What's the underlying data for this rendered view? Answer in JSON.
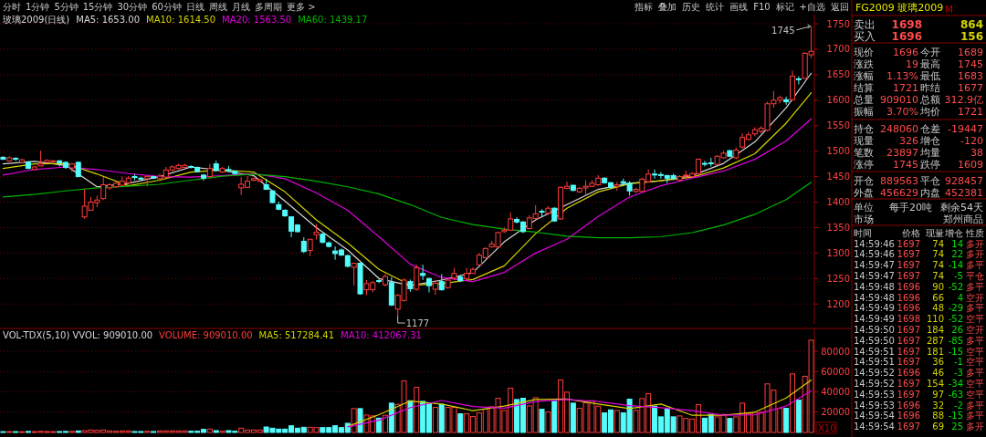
{
  "chart_data": [
    {
      "type": "candlestick",
      "title": "玻璃2009(日线)",
      "legend": "top left",
      "grid": "y",
      "ylim": [
        1161,
        1768
      ],
      "yticks": [
        1200,
        1250,
        1300,
        1350,
        1400,
        1450,
        1500,
        1550,
        1600,
        1650,
        1700,
        1750
      ],
      "categories": [
        null,
        null,
        null,
        null,
        null,
        null,
        null,
        null,
        null,
        null,
        null,
        null,
        null,
        null,
        null,
        null,
        null,
        null,
        null,
        null,
        null,
        null,
        null,
        null,
        null,
        null,
        null,
        null,
        null,
        null,
        null,
        null,
        null,
        null,
        null,
        null,
        null,
        null,
        null,
        null,
        null,
        null,
        null,
        null,
        null,
        null,
        null,
        null,
        null,
        null,
        null,
        null,
        null,
        null,
        null,
        null,
        null,
        null,
        null,
        null,
        null,
        null,
        null,
        null,
        null,
        null,
        null,
        null,
        null,
        null,
        null,
        null,
        null,
        null,
        null,
        null,
        null,
        null,
        null,
        null,
        null,
        null,
        null,
        null,
        null,
        null,
        null,
        null,
        null,
        null,
        null,
        null,
        null,
        null,
        null,
        null,
        null,
        null,
        null,
        null,
        null,
        null,
        null,
        null,
        null,
        null,
        null,
        null,
        null,
        null,
        null,
        null,
        null,
        null,
        null,
        null,
        null,
        null,
        null,
        null,
        null,
        null,
        null,
        null,
        null,
        null,
        null,
        null,
        null,
        null
      ],
      "ohlc": [
        [
          1488,
          1490,
          1483,
          1484
        ],
        [
          1481,
          1490,
          1479,
          1487
        ],
        [
          1486,
          1488,
          1481,
          1484
        ],
        [
          1478,
          1485,
          1477,
          1483
        ],
        [
          1479,
          1480,
          1465,
          1466
        ],
        [
          1464,
          1470,
          1463,
          1469
        ],
        [
          1471,
          1501,
          1470,
          1475
        ],
        [
          1478,
          1484,
          1477,
          1482
        ],
        [
          1480,
          1482,
          1478,
          1481
        ],
        [
          1481,
          1482,
          1470,
          1477
        ],
        [
          1478,
          1480,
          1465,
          1468
        ],
        [
          1467,
          1477,
          1459,
          1475
        ],
        [
          1478,
          1480,
          1449,
          1450
        ],
        [
          1371,
          1425,
          1367,
          1392
        ],
        [
          1384,
          1410,
          1383,
          1400
        ],
        [
          1399,
          1413,
          1390,
          1404
        ],
        [
          1407,
          1449,
          1404,
          1434
        ],
        [
          1428,
          1437,
          1424,
          1434
        ],
        [
          1430,
          1440,
          1428,
          1437
        ],
        [
          1433,
          1450,
          1431,
          1441
        ],
        [
          1438,
          1451,
          1436,
          1447
        ],
        [
          1450,
          1455,
          1443,
          1449
        ],
        [
          1447,
          1450,
          1444,
          1446
        ],
        [
          1446,
          1452,
          1431,
          1450
        ],
        [
          1450,
          1452,
          1445,
          1447
        ],
        [
          1446,
          1456,
          1444,
          1451
        ],
        [
          1449,
          1469,
          1447,
          1463
        ],
        [
          1463,
          1472,
          1460,
          1469
        ],
        [
          1466,
          1475,
          1464,
          1472
        ],
        [
          1468,
          1475,
          1466,
          1472
        ],
        [
          1470,
          1472,
          1466,
          1469
        ],
        [
          1468,
          1470,
          1458,
          1460
        ],
        [
          1453,
          1455,
          1442,
          1447
        ],
        [
          1450,
          1475,
          1446,
          1466
        ],
        [
          1475,
          1481,
          1460,
          1462
        ],
        [
          1459,
          1469,
          1457,
          1466
        ],
        [
          1464,
          1471,
          1459,
          1463
        ],
        [
          1461,
          1462,
          1454,
          1456
        ],
        [
          1428,
          1449,
          1414,
          1435
        ],
        [
          1429,
          1451,
          1428,
          1441
        ],
        [
          1443,
          1448,
          1441,
          1446
        ],
        [
          1441,
          1446,
          1440,
          1444
        ],
        [
          1434,
          1446,
          1424,
          1425
        ],
        [
          1422,
          1423,
          1398,
          1399
        ],
        [
          1395,
          1401,
          1384,
          1386
        ],
        [
          1384,
          1386,
          1371,
          1373
        ],
        [
          1371,
          1372,
          1331,
          1343
        ],
        [
          1355,
          1357,
          1340,
          1342
        ],
        [
          1323,
          1331,
          1300,
          1303
        ],
        [
          1305,
          1328,
          1294,
          1327
        ],
        [
          1336,
          1357,
          1327,
          1341
        ],
        [
          1337,
          1339,
          1319,
          1321
        ],
        [
          1320,
          1323,
          1311,
          1313
        ],
        [
          1304,
          1313,
          1287,
          1299
        ],
        [
          1306,
          1309,
          1294,
          1296
        ],
        [
          1295,
          1297,
          1272,
          1274
        ],
        [
          1272,
          1281,
          1236,
          1280
        ],
        [
          1280,
          1281,
          1218,
          1220
        ],
        [
          1228,
          1247,
          1217,
          1240
        ],
        [
          1228,
          1245,
          1223,
          1242
        ],
        [
          1246,
          1250,
          1241,
          1245
        ],
        [
          1238,
          1259,
          1234,
          1254
        ],
        [
          1242,
          1253,
          1196,
          1198
        ],
        [
          1190,
          1220,
          1177,
          1217
        ],
        [
          1207,
          1250,
          1205,
          1247
        ],
        [
          1244,
          1248,
          1224,
          1230
        ],
        [
          1229,
          1277,
          1226,
          1271
        ],
        [
          1260,
          1277,
          1247,
          1256
        ],
        [
          1250,
          1252,
          1223,
          1236
        ],
        [
          1229,
          1247,
          1218,
          1241
        ],
        [
          1244,
          1259,
          1226,
          1228
        ],
        [
          1232,
          1250,
          1230,
          1247
        ],
        [
          1251,
          1271,
          1247,
          1260
        ],
        [
          1253,
          1256,
          1243,
          1246
        ],
        [
          1250,
          1271,
          1247,
          1260
        ],
        [
          1260,
          1272,
          1259,
          1268
        ],
        [
          1277,
          1300,
          1275,
          1296
        ],
        [
          1291,
          1311,
          1289,
          1309
        ],
        [
          1312,
          1324,
          1311,
          1318
        ],
        [
          1312,
          1342,
          1310,
          1340
        ],
        [
          1342,
          1350,
          1340,
          1345
        ],
        [
          1345,
          1380,
          1343,
          1367
        ],
        [
          1366,
          1370,
          1358,
          1361
        ],
        [
          1361,
          1363,
          1339,
          1342
        ],
        [
          1348,
          1374,
          1346,
          1369
        ],
        [
          1368,
          1394,
          1366,
          1377
        ],
        [
          1382,
          1386,
          1372,
          1381
        ],
        [
          1378,
          1392,
          1375,
          1388
        ],
        [
          1388,
          1390,
          1361,
          1363
        ],
        [
          1367,
          1431,
          1365,
          1429
        ],
        [
          1427,
          1440,
          1425,
          1431
        ],
        [
          1433,
          1434,
          1421,
          1423
        ],
        [
          1420,
          1430,
          1418,
          1427
        ],
        [
          1428,
          1443,
          1413,
          1431
        ],
        [
          1431,
          1443,
          1429,
          1437
        ],
        [
          1434,
          1453,
          1432,
          1447
        ],
        [
          1447,
          1449,
          1436,
          1438
        ],
        [
          1438,
          1440,
          1426,
          1429
        ],
        [
          1431,
          1440,
          1422,
          1434
        ],
        [
          1440,
          1446,
          1431,
          1437
        ],
        [
          1437,
          1441,
          1413,
          1422
        ],
        [
          1421,
          1428,
          1418,
          1425
        ],
        [
          1421,
          1448,
          1419,
          1445
        ],
        [
          1440,
          1464,
          1438,
          1455
        ],
        [
          1455,
          1464,
          1446,
          1454
        ],
        [
          1454,
          1459,
          1446,
          1453
        ],
        [
          1452,
          1454,
          1437,
          1447
        ],
        [
          1452,
          1456,
          1443,
          1446
        ],
        [
          1443,
          1453,
          1441,
          1450
        ],
        [
          1452,
          1462,
          1446,
          1453
        ],
        [
          1450,
          1459,
          1448,
          1456
        ],
        [
          1456,
          1486,
          1454,
          1484
        ],
        [
          1476,
          1481,
          1470,
          1475
        ],
        [
          1477,
          1487,
          1470,
          1476
        ],
        [
          1474,
          1492,
          1472,
          1490
        ],
        [
          1487,
          1500,
          1485,
          1496
        ],
        [
          1501,
          1502,
          1488,
          1490
        ],
        [
          1487,
          1507,
          1484,
          1502
        ],
        [
          1508,
          1535,
          1505,
          1527
        ],
        [
          1523,
          1538,
          1521,
          1532
        ],
        [
          1534,
          1547,
          1529,
          1542
        ],
        [
          1539,
          1549,
          1535,
          1545
        ],
        [
          1541,
          1597,
          1539,
          1593
        ],
        [
          1593,
          1618,
          1585,
          1600
        ],
        [
          1600,
          1609,
          1594,
          1605
        ],
        [
          1601,
          1607,
          1591,
          1597
        ],
        [
          1601,
          1658,
          1599,
          1647
        ],
        [
          1642,
          1647,
          1631,
          1641
        ],
        [
          1643,
          1694,
          1641,
          1692
        ],
        [
          1689,
          1745,
          1683,
          1696
        ]
      ],
      "series": [
        {
          "name": "MA5: 1653.00",
          "type": "line",
          "color": "#d8d8d8",
          "values": [
            1475,
            null,
            null,
            null,
            null,
            1480,
            null,
            null,
            null,
            null,
            1472,
            null,
            null,
            null,
            null,
            1430,
            null,
            null,
            null,
            null,
            1437,
            null,
            null,
            null,
            null,
            1450,
            null,
            null,
            null,
            null,
            1469,
            null,
            null,
            null,
            null,
            1462,
            null,
            null,
            null,
            null,
            1452,
            null,
            null,
            null,
            null,
            1402,
            null,
            null,
            null,
            null,
            1350,
            null,
            null,
            null,
            null,
            1306,
            null,
            null,
            null,
            null,
            1250,
            null,
            null,
            null,
            null,
            1236,
            null,
            null,
            null,
            null,
            1247,
            null,
            null,
            null,
            null,
            1262,
            null,
            null,
            null,
            null,
            1322,
            null,
            null,
            null,
            null,
            1365,
            null,
            null,
            null,
            null,
            1395,
            null,
            null,
            null,
            null,
            1425,
            null,
            null,
            null,
            null,
            1437,
            null,
            null,
            null,
            null,
            1442,
            null,
            null,
            null,
            null,
            1452,
            null,
            null,
            null,
            null,
            1476,
            null,
            null,
            null,
            null,
            1518,
            null,
            null,
            null,
            null,
            1585,
            null,
            null,
            null,
            1653
          ]
        },
        {
          "name": "MA10: 1614.50",
          "type": "line",
          "color": "#d4d400",
          "values": [
            1466,
            null,
            null,
            null,
            null,
            1475,
            null,
            null,
            null,
            null,
            1476,
            null,
            null,
            null,
            null,
            1455,
            null,
            null,
            null,
            null,
            1432,
            null,
            null,
            null,
            null,
            1443,
            null,
            null,
            null,
            null,
            1459,
            null,
            null,
            null,
            null,
            1463,
            null,
            null,
            null,
            null,
            1459,
            null,
            null,
            null,
            null,
            1420,
            null,
            null,
            null,
            null,
            1365,
            null,
            null,
            null,
            null,
            1320,
            null,
            null,
            null,
            null,
            1268,
            null,
            null,
            null,
            null,
            1237,
            null,
            null,
            null,
            null,
            1240,
            null,
            null,
            null,
            null,
            1248,
            null,
            null,
            null,
            null,
            1275,
            null,
            null,
            null,
            null,
            1338,
            null,
            null,
            null,
            null,
            1388,
            null,
            null,
            null,
            null,
            1420,
            null,
            null,
            null,
            null,
            1436,
            null,
            null,
            null,
            null,
            1442,
            null,
            null,
            null,
            null,
            1449,
            null,
            null,
            null,
            null,
            1467,
            null,
            null,
            null,
            null,
            1495,
            null,
            null,
            null,
            null,
            1555,
            null,
            null,
            null,
            1614.5
          ]
        },
        {
          "name": "MA20: 1563.50",
          "type": "line",
          "color": "#e000e0",
          "values": [
            1453,
            null,
            null,
            null,
            null,
            1464,
            null,
            null,
            null,
            null,
            1469,
            null,
            null,
            null,
            null,
            1464,
            null,
            null,
            null,
            null,
            1456,
            null,
            null,
            null,
            null,
            1450,
            null,
            null,
            null,
            null,
            1449,
            null,
            null,
            null,
            null,
            1452,
            null,
            null,
            null,
            null,
            1456,
            null,
            null,
            null,
            null,
            1446,
            null,
            null,
            null,
            null,
            1418,
            null,
            null,
            null,
            null,
            1384,
            null,
            null,
            null,
            null,
            1332,
            null,
            null,
            null,
            null,
            1278,
            null,
            null,
            null,
            null,
            1252,
            null,
            null,
            null,
            null,
            1244,
            null,
            null,
            null,
            null,
            1262,
            null,
            null,
            null,
            null,
            1300,
            null,
            null,
            null,
            null,
            1327,
            null,
            null,
            null,
            null,
            1372,
            null,
            null,
            null,
            null,
            1410,
            null,
            null,
            null,
            null,
            1432,
            null,
            null,
            null,
            null,
            1447,
            null,
            null,
            null,
            null,
            1461,
            null,
            null,
            null,
            null,
            1484,
            null,
            null,
            null,
            null,
            1520,
            null,
            null,
            null,
            1563.5
          ]
        },
        {
          "name": "MA60: 1439.17",
          "type": "line",
          "color": "#00b400",
          "values": [
            1410,
            null,
            null,
            null,
            null,
            1415,
            null,
            null,
            null,
            null,
            1422,
            null,
            null,
            null,
            null,
            1428,
            null,
            null,
            null,
            null,
            1431,
            null,
            null,
            null,
            null,
            1435,
            null,
            null,
            null,
            null,
            1443,
            null,
            null,
            null,
            null,
            1451,
            null,
            null,
            null,
            null,
            1455,
            null,
            null,
            null,
            null,
            1450,
            null,
            null,
            null,
            null,
            1441,
            null,
            null,
            null,
            null,
            1430,
            null,
            null,
            null,
            null,
            1416,
            null,
            null,
            null,
            null,
            1395,
            null,
            null,
            null,
            null,
            1370,
            null,
            null,
            null,
            null,
            1356,
            null,
            null,
            null,
            null,
            1347,
            null,
            null,
            null,
            null,
            1341,
            null,
            null,
            null,
            null,
            1333,
            null,
            null,
            null,
            null,
            1330,
            null,
            null,
            null,
            null,
            1330,
            null,
            null,
            null,
            null,
            1332,
            null,
            null,
            null,
            null,
            1340,
            null,
            null,
            null,
            null,
            1355,
            null,
            null,
            null,
            null,
            1376,
            null,
            null,
            null,
            null,
            1405,
            null,
            null,
            null,
            1439.17
          ]
        }
      ],
      "annotations": [
        "1745",
        "1177"
      ]
    },
    {
      "type": "bar",
      "title": "VOL-TDX(5,10) VVOL: 909010.00",
      "legend": "top left",
      "grid": "y",
      "ylim": [
        0,
        102600
      ],
      "yticks": [
        20000,
        40000,
        60000,
        80000
      ],
      "categories": [
        null,
        null,
        null,
        null,
        null,
        null,
        null,
        null,
        null,
        null,
        null,
        null,
        null,
        null,
        null,
        null,
        null,
        null,
        null,
        null,
        null,
        null,
        null,
        null,
        null,
        null,
        null,
        null,
        null,
        null,
        null,
        null,
        null,
        null,
        null,
        null,
        null,
        null,
        null,
        null,
        null,
        null,
        null,
        null,
        null,
        null,
        null,
        null,
        null,
        null,
        null,
        null,
        null,
        null,
        null,
        null,
        null,
        null,
        null,
        null,
        null,
        null,
        null,
        null,
        null,
        null,
        null,
        null,
        null,
        null,
        null,
        null,
        null,
        null,
        null,
        null,
        null,
        null,
        null,
        null,
        null,
        null,
        null,
        null,
        null,
        null,
        null,
        null,
        null,
        null,
        null,
        null,
        null,
        null,
        null,
        null,
        null,
        null,
        null,
        null,
        null,
        null,
        null,
        null,
        null,
        null,
        null,
        null,
        null,
        null,
        null,
        null,
        null,
        null,
        null,
        null,
        null,
        null,
        null,
        null,
        null,
        null,
        null,
        null,
        null,
        null,
        null,
        null,
        null,
        null
      ],
      "series": [
        {
          "name": "VOLUME: 909010.00",
          "color": "#ff3c3c",
          "colors": [
            "#54fcfc",
            "#ff3c3c",
            "#54fcfc",
            "#ff3c3c",
            "#54fcfc",
            "#ff3c3c",
            "#ff3c3c",
            "#ff3c3c",
            "#ff3c3c",
            "#54fcfc",
            "#54fcfc",
            "#ff3c3c",
            "#54fcfc",
            "#ff3c3c",
            "#ff3c3c",
            "#ff3c3c",
            "#ff3c3c",
            "#ff3c3c",
            "#ff3c3c",
            "#ff3c3c",
            "#ff3c3c",
            "#54fcfc",
            "#54fcfc",
            "#ff3c3c",
            "#54fcfc",
            "#ff3c3c",
            "#ff3c3c",
            "#ff3c3c",
            "#ff3c3c",
            "#ff3c3c",
            "#54fcfc",
            "#54fcfc",
            "#54fcfc",
            "#ff3c3c",
            "#54fcfc",
            "#ff3c3c",
            "#54fcfc",
            "#54fcfc",
            "#ff3c3c",
            "#ff3c3c",
            "#ff3c3c",
            "#ff3c3c",
            "#54fcfc",
            "#54fcfc",
            "#54fcfc",
            "#54fcfc",
            "#54fcfc",
            "#54fcfc",
            "#54fcfc",
            "#ff3c3c",
            "#ff3c3c",
            "#54fcfc",
            "#54fcfc",
            "#54fcfc",
            "#54fcfc",
            "#54fcfc",
            "#ff3c3c",
            "#54fcfc",
            "#ff3c3c",
            "#ff3c3c",
            "#54fcfc",
            "#ff3c3c",
            "#54fcfc",
            "#ff3c3c",
            "#ff3c3c",
            "#54fcfc",
            "#ff3c3c",
            "#54fcfc",
            "#54fcfc",
            "#ff3c3c",
            "#54fcfc",
            "#ff3c3c",
            "#ff3c3c",
            "#54fcfc",
            "#ff3c3c",
            "#ff3c3c",
            "#ff3c3c",
            "#ff3c3c",
            "#ff3c3c",
            "#ff3c3c",
            "#ff3c3c",
            "#ff3c3c",
            "#54fcfc",
            "#54fcfc",
            "#ff3c3c",
            "#ff3c3c",
            "#54fcfc",
            "#ff3c3c",
            "#54fcfc",
            "#ff3c3c",
            "#ff3c3c",
            "#54fcfc",
            "#ff3c3c",
            "#ff3c3c",
            "#ff3c3c",
            "#ff3c3c",
            "#54fcfc",
            "#54fcfc",
            "#ff3c3c",
            "#54fcfc",
            "#54fcfc",
            "#ff3c3c",
            "#ff3c3c",
            "#ff3c3c",
            "#54fcfc",
            "#54fcfc",
            "#54fcfc",
            "#54fcfc",
            "#ff3c3c",
            "#ff3c3c",
            "#ff3c3c",
            "#ff3c3c",
            "#54fcfc",
            "#54fcfc",
            "#ff3c3c",
            "#ff3c3c",
            "#54fcfc",
            "#ff3c3c",
            "#ff3c3c",
            "#ff3c3c",
            "#ff3c3c",
            "#ff3c3c",
            "#ff3c3c",
            "#ff3c3c",
            "#ff3c3c",
            "#54fcfc",
            "#ff3c3c",
            "#54fcfc",
            "#ff3c3c",
            "#ff3c3c"
          ],
          "values": [
            800,
            900,
            800,
            700,
            1000,
            800,
            1200,
            900,
            800,
            900,
            1000,
            1100,
            1500,
            1800,
            2400,
            2100,
            2400,
            1500,
            1200,
            1500,
            1500,
            900,
            900,
            1200,
            900,
            1500,
            1500,
            1500,
            1500,
            1500,
            1200,
            1200,
            3000,
            3300,
            1800,
            1200,
            1800,
            1200,
            4200,
            2400,
            2400,
            2400,
            5400,
            4200,
            3300,
            3300,
            6600,
            4200,
            5100,
            5100,
            4800,
            4800,
            4800,
            6600,
            4800,
            9000,
            23500,
            23500,
            17200,
            16300,
            14100,
            16900,
            28900,
            27700,
            50900,
            31300,
            44500,
            30700,
            28300,
            24700,
            27700,
            24700,
            24700,
            18400,
            18400,
            15700,
            19300,
            22900,
            25300,
            33700,
            21700,
            43600,
            32500,
            33700,
            26200,
            34300,
            22900,
            20200,
            30700,
            51800,
            39700,
            28900,
            23800,
            29200,
            31300,
            25900,
            19300,
            22300,
            21700,
            19300,
            32800,
            21700,
            33400,
            38200,
            25900,
            15400,
            22900,
            15400,
            16300,
            13800,
            13200,
            27400,
            14100,
            17800,
            15400,
            17800,
            13800,
            15400,
            28900,
            18700,
            19900,
            19900,
            47900,
            41800,
            23800,
            23800,
            57800,
            31900,
            55400,
            90901
          ]
        },
        {
          "name": "MA5: 517284.41",
          "type": "line",
          "color": "#d4d400",
          "values": [
            null,
            null,
            null,
            null,
            null,
            null,
            null,
            null,
            null,
            null,
            null,
            null,
            null,
            null,
            null,
            null,
            null,
            null,
            null,
            null,
            null,
            null,
            null,
            null,
            null,
            null,
            null,
            null,
            null,
            null,
            null,
            null,
            null,
            null,
            null,
            null,
            null,
            null,
            null,
            null,
            null,
            null,
            null,
            null,
            null,
            null,
            null,
            null,
            null,
            null,
            null,
            null,
            null,
            null,
            null,
            6000,
            null,
            null,
            null,
            null,
            17500,
            null,
            null,
            null,
            null,
            31000,
            null,
            null,
            null,
            null,
            28000,
            null,
            null,
            null,
            null,
            21500,
            null,
            null,
            null,
            null,
            26000,
            null,
            null,
            null,
            null,
            32500,
            null,
            null,
            null,
            null,
            33000,
            null,
            null,
            null,
            null,
            28000,
            null,
            null,
            null,
            null,
            23500,
            null,
            null,
            null,
            null,
            28000,
            null,
            null,
            null,
            null,
            16900,
            null,
            null,
            null,
            null,
            17000,
            null,
            null,
            null,
            null,
            20000,
            null,
            null,
            null,
            null,
            34000,
            null,
            null,
            null,
            51728
          ]
        },
        {
          "name": "MA10: 412067.31",
          "type": "line",
          "color": "#e000e0",
          "values": [
            null,
            null,
            null,
            null,
            null,
            null,
            null,
            null,
            null,
            null,
            null,
            null,
            null,
            null,
            null,
            null,
            null,
            null,
            null,
            null,
            null,
            null,
            null,
            null,
            null,
            null,
            null,
            null,
            null,
            null,
            null,
            null,
            null,
            null,
            null,
            null,
            null,
            null,
            null,
            null,
            null,
            null,
            null,
            null,
            null,
            null,
            null,
            null,
            null,
            null,
            null,
            null,
            null,
            null,
            null,
            5500,
            null,
            null,
            null,
            null,
            12000,
            null,
            null,
            null,
            null,
            24500,
            null,
            null,
            null,
            null,
            31500,
            null,
            null,
            null,
            null,
            25500,
            null,
            null,
            null,
            null,
            24000,
            null,
            null,
            null,
            null,
            30500,
            null,
            null,
            null,
            null,
            32500,
            null,
            null,
            null,
            null,
            30500,
            null,
            null,
            null,
            null,
            26500,
            null,
            null,
            null,
            null,
            24500,
            null,
            null,
            null,
            null,
            21500,
            null,
            null,
            null,
            null,
            17000,
            null,
            null,
            null,
            null,
            17500,
            null,
            null,
            null,
            null,
            26000,
            null,
            null,
            null,
            41207
          ]
        }
      ],
      "annotations": [
        "X10"
      ]
    },
    {
      "type": "other",
      "annotations": [
        "分时",
        "1分钟",
        "5分钟",
        "15分钟",
        "30分钟",
        "60分钟",
        "日线",
        "周线",
        "月线",
        "多周期",
        "更多 >",
        "指标",
        "叠加",
        "历史",
        "统计",
        "画线",
        "F10",
        "标记",
        "+自选",
        "返回",
        "FG2009 玻璃2009",
        "M",
        "卖出",
        "1698",
        "864",
        "买入",
        "1696",
        "156",
        "现价",
        "1696",
        "今开",
        "1689",
        "涨跌",
        "19",
        "最高",
        "1745",
        "涨幅",
        "1.13%",
        "最低",
        "1683",
        "结算",
        "1721",
        "昨结",
        "1677",
        "总量",
        "909010",
        "总额",
        "312.9亿",
        "振幅",
        "3.70%",
        "均价",
        "1721",
        "持仓",
        "248060",
        "仓差",
        "-19447",
        "现量",
        "326",
        "增仓",
        "-120",
        "笔数",
        "23897",
        "均量",
        "38",
        "涨停",
        "1745",
        "跌停",
        "1609",
        "开仓",
        "889563",
        "平仓",
        "928457",
        "外盘",
        "456629",
        "内盘",
        "452381",
        "单位",
        "每手20吨",
        "剩余54天",
        "市场",
        "郑州商品",
        "时间",
        "价格",
        "现量",
        "增仓",
        "性质",
        "14:59:46",
        "1697",
        "74",
        "14",
        "多开",
        "14:59:46",
        "1697",
        "74",
        "22",
        "多开",
        "14:59:47",
        "1697",
        "74",
        "-14",
        "多平",
        "14:59:47",
        "1697",
        "74",
        "-5",
        "平仓",
        "14:59:48",
        "1696",
        "90",
        "-52",
        "多平",
        "14:59:48",
        "1696",
        "66",
        "4",
        "空开",
        "14:59:49",
        "1696",
        "48",
        "-29",
        "多平",
        "14:59:49",
        "1698",
        "110",
        "-52",
        "空平",
        "14:59:50",
        "1697",
        "184",
        "26",
        "空开",
        "14:59:50",
        "1697",
        "287",
        "-85",
        "多平",
        "14:59:51",
        "1697",
        "181",
        "-15",
        "空平",
        "14:59:51",
        "1697",
        "36",
        "-1",
        "空平",
        "14:59:52",
        "1696",
        "46",
        "-3",
        "多平",
        "14:59:52",
        "1697",
        "154",
        "-34",
        "空平",
        "14:59:53",
        "1697",
        "97",
        "-63",
        "空平",
        "14:59:53",
        "1696",
        "32",
        "-2",
        "多平",
        "14:59:54",
        "1696",
        "88",
        "-15",
        "多平",
        "14:59:54",
        "1697",
        "69",
        "25",
        "多开"
      ]
    }
  ]
}
